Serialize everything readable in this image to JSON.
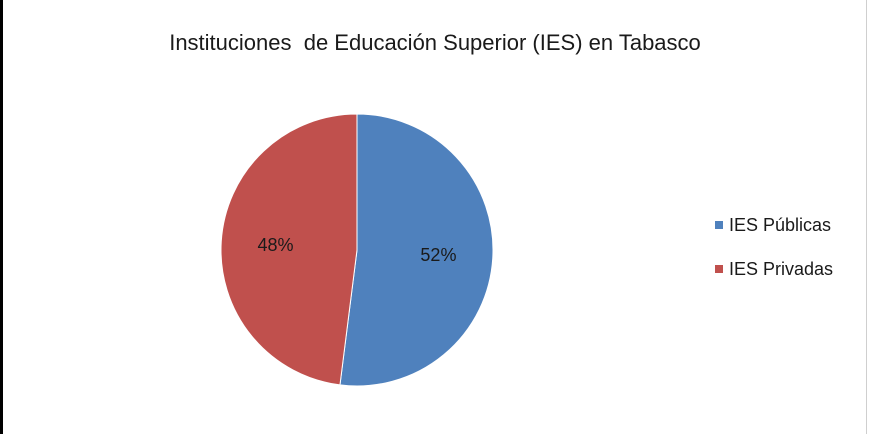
{
  "chart_data": {
    "type": "pie",
    "title": "Instituciones  de Educación Superior (IES) en Tabasco",
    "categories": [
      "IES Públicas",
      "IES Privadas"
    ],
    "values": [
      52,
      48
    ],
    "data_labels": [
      "52%",
      "48%"
    ],
    "colors": [
      "#4f81bd",
      "#c0504d"
    ],
    "legend_position": "right"
  }
}
